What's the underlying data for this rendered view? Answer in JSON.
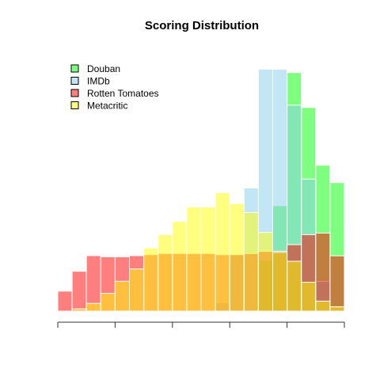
{
  "chart_data": {
    "type": "bar",
    "subtype": "overlapping-histogram",
    "title": "Scoring Distribution",
    "xlabel": "",
    "ylabel": "",
    "grid": false,
    "legend_position": "top-left",
    "x_ticks": [
      0,
      2,
      4,
      6,
      8,
      10
    ],
    "x_tick_labels_shown": false,
    "xlim": [
      0,
      10
    ],
    "ylim": [
      0,
      0.185
    ],
    "bin_edges": [
      0,
      0.5,
      1,
      1.5,
      2,
      2.5,
      3,
      3.5,
      4,
      4.5,
      5,
      5.5,
      6,
      6.5,
      7,
      7.5,
      8,
      8.5,
      9,
      9.5,
      10
    ],
    "series": [
      {
        "name": "Douban",
        "fill": "#00ff00",
        "values": [
          0,
          0,
          0,
          0,
          0,
          0,
          0,
          0,
          0,
          0,
          0,
          0,
          0,
          0,
          0.0355,
          0.0738,
          0.1669,
          0.1425,
          0.1021,
          0.0899
        ]
      },
      {
        "name": "IMDb",
        "fill": "#87ceeb",
        "values": [
          0,
          0,
          0,
          0,
          0,
          0,
          0,
          0,
          0,
          0,
          0,
          0.0057,
          0.0403,
          0.0862,
          0.1693,
          0.1693,
          0.1441,
          0.0924,
          0.0208,
          0.0026
        ]
      },
      {
        "name": "Rotten Tomatoes",
        "fill": "#ff0000",
        "values": [
          0.014,
          0.0279,
          0.0388,
          0.038,
          0.038,
          0.0388,
          0.0395,
          0.0403,
          0.0403,
          0.0403,
          0.0403,
          0.0395,
          0.0395,
          0.0403,
          0.0419,
          0.0419,
          0.0465,
          0.0535,
          0.0546,
          0.0387
        ]
      },
      {
        "name": "Metacritic",
        "fill": "#ffff00",
        "values": [
          0,
          0.0016,
          0.0054,
          0.0124,
          0.0209,
          0.0295,
          0.0442,
          0.0535,
          0.0628,
          0.0729,
          0.0729,
          0.0829,
          0.0752,
          0.069,
          0.0551,
          0.0411,
          0.0349,
          0.0202,
          0.007,
          0.0031
        ]
      }
    ]
  }
}
